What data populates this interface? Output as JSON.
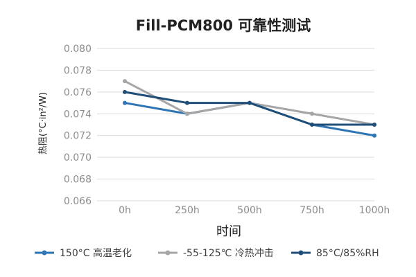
{
  "chart_data": {
    "type": "line",
    "title": "Fill-PCM800 可靠性测试",
    "xlabel": "时间",
    "ylabel": "热阻(°C·in²/W)",
    "categories": [
      "0h",
      "250h",
      "500h",
      "750h",
      "1000h"
    ],
    "ylim": [
      0.066,
      0.08
    ],
    "yticks": [
      0.066,
      0.068,
      0.07,
      0.072,
      0.074,
      0.076,
      0.078,
      0.08
    ],
    "ytick_labels": [
      "0.066",
      "0.068",
      "0.070",
      "0.072",
      "0.074",
      "0.076",
      "0.078",
      "0.080"
    ],
    "grid": true,
    "legend_position": "bottom",
    "series": [
      {
        "name": "150°C 高温老化",
        "color": "#2e75b6",
        "values": [
          0.075,
          0.074,
          0.075,
          0.073,
          0.072
        ]
      },
      {
        "name": "-55-125℃ 冷热冲击",
        "color": "#a5a5a5",
        "values": [
          0.077,
          0.074,
          0.075,
          0.074,
          0.073
        ]
      },
      {
        "name": "85°C/85%RH",
        "color": "#1f4e79",
        "values": [
          0.076,
          0.075,
          0.075,
          0.073,
          0.073
        ]
      }
    ]
  }
}
